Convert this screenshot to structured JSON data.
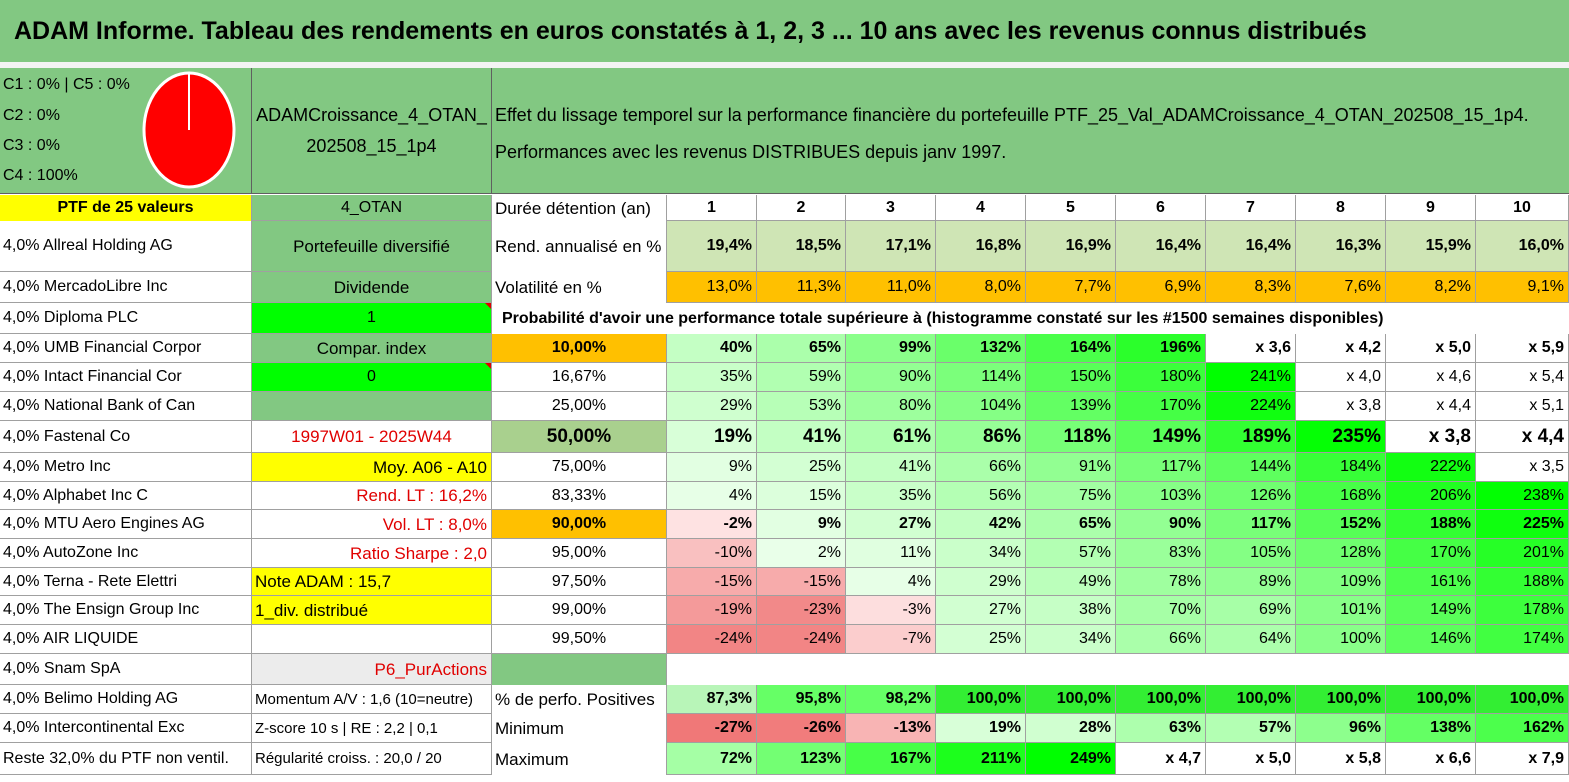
{
  "header": {
    "title": "ADAM Informe. Tableau des rendements en euros constatés à 1, 2, 3 ... 10 ans avec les revenus connus distribués"
  },
  "colors": {
    "title_bg": "#82c882",
    "green_panel": "#82c882",
    "yellow": "#ffff00",
    "orange": "#ffc000",
    "bright_green": "#00ff00",
    "pie_red": "#ff0000",
    "label_red": "#e00000"
  },
  "pie": {
    "legend": [
      "C1 : 0% | C5 : 0%",
      "C2 : 0%",
      "C3 : 0%",
      "C4 : 100%"
    ],
    "slices": [
      {
        "name": "C1",
        "value": 0
      },
      {
        "name": "C2",
        "value": 0
      },
      {
        "name": "C3",
        "value": 0
      },
      {
        "name": "C4",
        "value": 100
      },
      {
        "name": "C5",
        "value": 0
      }
    ]
  },
  "portfolio": {
    "name_line1": "ADAMCroissance_4_OTAN_",
    "name_line2": "202508_15_1p4",
    "code": "4_OTAN",
    "count_label": "PTF de 25 valeurs",
    "diversified_label": "Portefeuille diversifié",
    "dividend_label": "Dividende",
    "dividend_value": "1",
    "index_label": "Compar. index",
    "index_value": "0",
    "period": "1997W01 - 2025W44",
    "avg_label": "Moy. A06 - A10",
    "rend_lt": "Rend. LT : 16,2%",
    "vol_lt": "Vol. LT : 8,0%",
    "sharpe": "Ratio Sharpe : 2,0",
    "note": "Note ADAM : 15,7",
    "div_distrib": "1_div. distribué",
    "pur_actions": "P6_PurActions",
    "momentum": "Momentum A/V : 1,6 (10=neutre)",
    "zscore": "Z-score 10 s | RE : 2,2 | 0,1",
    "regularite": "Régularité croiss. : 20,0 / 20"
  },
  "description": {
    "line1": "Effet du lissage temporel sur la performance financière du portefeuille PTF_25_Val_ADAMCroissance_4_OTAN_202508_15_1p4.",
    "line2": "Performances avec les revenus DISTRIBUES depuis janv 1997."
  },
  "holdings": [
    "4,0% Allreal Holding AG",
    "4,0% MercadoLibre Inc",
    "4,0% Diploma PLC",
    "4,0% UMB Financial Corpor",
    "4,0% Intact Financial Cor",
    "4,0% National Bank of Can",
    "4,0% Fastenal Co",
    "4,0% Metro Inc",
    "4,0% Alphabet Inc C",
    "4,0% MTU Aero Engines AG",
    "4,0% AutoZone Inc",
    "4,0% Terna - Rete Elettri",
    "4,0% The Ensign Group Inc",
    "4,0% AIR LIQUIDE",
    "4,0% Snam SpA",
    "4,0% Belimo Holding AG",
    "4,0% Intercontinental Exc",
    "Reste 32,0% du PTF non ventil."
  ],
  "table": {
    "duration_label": "Durée détention (an)",
    "years": [
      "1",
      "2",
      "3",
      "4",
      "5",
      "6",
      "7",
      "8",
      "9",
      "10"
    ],
    "rend_label": "Rend. annualisé en %",
    "rend": [
      "19,4%",
      "18,5%",
      "17,1%",
      "16,8%",
      "16,9%",
      "16,4%",
      "16,4%",
      "16,3%",
      "15,9%",
      "16,0%"
    ],
    "vol_label": "Volatilité en %",
    "vol": [
      "13,0%",
      "11,3%",
      "11,0%",
      "8,0%",
      "7,7%",
      "6,9%",
      "8,3%",
      "7,6%",
      "8,2%",
      "9,1%"
    ],
    "prob_title": "Probabilité d'avoir une performance totale supérieure à (histogramme constaté sur les #1500 semaines disponibles)",
    "prob_rows": [
      {
        "p": "10,00%",
        "v": [
          "40%",
          "65%",
          "99%",
          "132%",
          "164%",
          "196%",
          "x 3,6",
          "x 4,2",
          "x 5,0",
          "x 5,9"
        ]
      },
      {
        "p": "16,67%",
        "v": [
          "35%",
          "59%",
          "90%",
          "114%",
          "150%",
          "180%",
          "241%",
          "x 4,0",
          "x 4,6",
          "x 5,4"
        ]
      },
      {
        "p": "25,00%",
        "v": [
          "29%",
          "53%",
          "80%",
          "104%",
          "139%",
          "170%",
          "224%",
          "x 3,8",
          "x 4,4",
          "x 5,1"
        ]
      },
      {
        "p": "50,00%",
        "v": [
          "19%",
          "41%",
          "61%",
          "86%",
          "118%",
          "149%",
          "189%",
          "235%",
          "x 3,8",
          "x 4,4"
        ]
      },
      {
        "p": "75,00%",
        "v": [
          "9%",
          "25%",
          "41%",
          "66%",
          "91%",
          "117%",
          "144%",
          "184%",
          "222%",
          "x 3,5"
        ]
      },
      {
        "p": "83,33%",
        "v": [
          "4%",
          "15%",
          "35%",
          "56%",
          "75%",
          "103%",
          "126%",
          "168%",
          "206%",
          "238%"
        ]
      },
      {
        "p": "90,00%",
        "v": [
          "-2%",
          "9%",
          "27%",
          "42%",
          "65%",
          "90%",
          "117%",
          "152%",
          "188%",
          "225%"
        ]
      },
      {
        "p": "95,00%",
        "v": [
          "-10%",
          "2%",
          "11%",
          "34%",
          "57%",
          "83%",
          "105%",
          "128%",
          "170%",
          "201%"
        ]
      },
      {
        "p": "97,50%",
        "v": [
          "-15%",
          "-15%",
          "4%",
          "29%",
          "49%",
          "78%",
          "89%",
          "109%",
          "161%",
          "188%"
        ]
      },
      {
        "p": "99,00%",
        "v": [
          "-19%",
          "-23%",
          "-3%",
          "27%",
          "38%",
          "70%",
          "69%",
          "101%",
          "149%",
          "178%"
        ]
      },
      {
        "p": "99,50%",
        "v": [
          "-24%",
          "-24%",
          "-7%",
          "25%",
          "34%",
          "66%",
          "64%",
          "100%",
          "146%",
          "174%"
        ]
      }
    ],
    "pos_label": "% de perfo. Positives",
    "pos": [
      "87,3%",
      "95,8%",
      "98,2%",
      "100,0%",
      "100,0%",
      "100,0%",
      "100,0%",
      "100,0%",
      "100,0%",
      "100,0%"
    ],
    "min_label": "Minimum",
    "min": [
      "-27%",
      "-26%",
      "-13%",
      "19%",
      "28%",
      "63%",
      "57%",
      "96%",
      "138%",
      "162%"
    ],
    "max_label": "Maximum",
    "max": [
      "72%",
      "123%",
      "167%",
      "211%",
      "249%",
      "x 4,7",
      "x 5,0",
      "x 5,8",
      "x 6,6",
      "x 7,9"
    ]
  }
}
